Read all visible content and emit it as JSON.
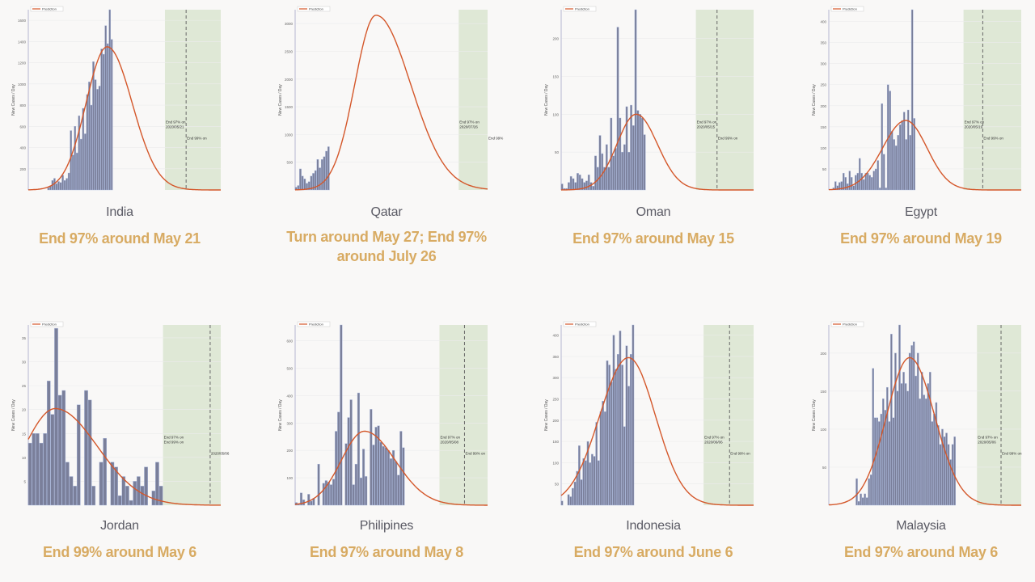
{
  "colors": {
    "bar": "#7a7f9a",
    "bar_edge": "#a9b8e0",
    "curve": "#d4572a",
    "shade": "#dfe8d6",
    "subtitle": "#d8ab63",
    "name": "#5a5a64"
  },
  "legend_label": "Prediction",
  "ylabel": "New Cases / Day",
  "chart_data": [
    {
      "type": "bar+line",
      "country": "India",
      "subtitle": "End 97% around May 21",
      "ylim": [
        0,
        1700
      ],
      "yticks": [
        200,
        400,
        600,
        800,
        1000,
        1200,
        1400,
        1600
      ],
      "xlim": [
        0,
        100
      ],
      "bars_range": [
        10,
        44
      ],
      "bars": [
        20,
        40,
        90,
        110,
        60,
        80,
        70,
        140,
        90,
        110,
        160,
        560,
        330,
        600,
        350,
        700,
        480,
        770,
        530,
        900,
        1020,
        800,
        1210,
        1040,
        950,
        980,
        1330,
        1280,
        1550,
        1380,
        1700,
        1420
      ],
      "prediction": {
        "peak": 1350,
        "peak_x": 41,
        "spread_left": 11,
        "spread_right": 13
      },
      "shade_range": [
        71,
        100
      ],
      "dashed_x": 82,
      "annotations": [
        "End 97% on",
        "2020/05/21",
        "End 99% on"
      ]
    },
    {
      "type": "bar+line",
      "country": "Qatar",
      "subtitle": "Turn around May 27; End 97% around July 26",
      "ylim": [
        0,
        3250
      ],
      "yticks": [
        500,
        1000,
        1500,
        2000,
        2500,
        3000
      ],
      "xlim": [
        0,
        100
      ],
      "bars_range": [
        0,
        18
      ],
      "bars": [
        50,
        80,
        380,
        250,
        200,
        120,
        150,
        250,
        300,
        350,
        550,
        400,
        550,
        600,
        700,
        780
      ],
      "prediction": {
        "peak": 3150,
        "peak_x": 42,
        "spread_left": 11,
        "spread_right": 18
      },
      "shade_range": [
        85,
        100
      ],
      "dashed_x": null,
      "annotations": [
        "End 97% on",
        "2020/07/26",
        "End 99%"
      ]
    },
    {
      "type": "bar+line",
      "country": "Oman",
      "subtitle": "End 97% around May 15",
      "ylim": [
        0,
        238
      ],
      "yticks": [
        50,
        100,
        150,
        200
      ],
      "xlim": [
        0,
        100
      ],
      "bars_range": [
        0,
        44
      ],
      "bars": [
        8,
        2,
        2,
        10,
        18,
        15,
        10,
        22,
        20,
        15,
        10,
        12,
        20,
        10,
        5,
        45,
        30,
        72,
        48,
        30,
        60,
        30,
        95,
        45,
        55,
        215,
        95,
        50,
        60,
        110,
        50,
        112,
        85,
        240,
        105,
        100,
        95,
        73
      ],
      "prediction": {
        "peak": 100,
        "peak_x": 39,
        "spread_left": 10,
        "spread_right": 11
      },
      "shade_range": [
        70,
        100
      ],
      "dashed_x": 81,
      "annotations": [
        "End 97% on",
        "2020/05/15",
        "End 99% on"
      ]
    },
    {
      "type": "bar+line",
      "country": "Egypt",
      "subtitle": "End 97% around May 19",
      "ylim": [
        0,
        428
      ],
      "yticks": [
        50,
        100,
        150,
        200,
        250,
        300,
        350,
        400
      ],
      "xlim": [
        0,
        100
      ],
      "bars_range": [
        2,
        45
      ],
      "bars": [
        5,
        20,
        10,
        18,
        20,
        40,
        30,
        15,
        45,
        30,
        10,
        35,
        40,
        75,
        40,
        25,
        40,
        40,
        35,
        30,
        45,
        50,
        70,
        5,
        205,
        85,
        5,
        250,
        235,
        140,
        120,
        105,
        130,
        155,
        165,
        185,
        120,
        190,
        130,
        450,
        170
      ],
      "prediction": {
        "peak": 165,
        "peak_x": 40,
        "spread_left": 12,
        "spread_right": 11
      },
      "shade_range": [
        70,
        100
      ],
      "dashed_x": 80,
      "annotations": [
        "End 97% on",
        "2020/05/19",
        "End 99% on"
      ]
    },
    {
      "type": "bar+line",
      "country": "Jordan",
      "subtitle": "End 99% around May 6",
      "ylim": [
        0,
        37.7
      ],
      "yticks": [
        5,
        10,
        15,
        20,
        25,
        30,
        35
      ],
      "xlim": [
        0,
        100
      ],
      "bars_range": [
        0,
        70
      ],
      "bars": [
        13,
        15,
        15,
        13,
        15,
        26,
        19,
        37,
        23,
        24,
        9,
        6,
        4,
        21,
        0,
        24,
        22,
        4,
        0,
        9,
        14,
        0,
        9,
        8,
        2,
        6,
        4,
        1,
        5,
        6,
        4,
        8,
        0,
        3,
        9,
        4
      ],
      "prediction": {
        "peak": 20.2,
        "peak_x": 14,
        "spread_left": 16,
        "spread_right": 22
      },
      "shade_range": [
        70,
        100
      ],
      "dashed_x": 94.5,
      "annotations": [
        "End 97% on",
        "End 99% on",
        "2020/05/06"
      ]
    },
    {
      "type": "bar+line",
      "country": "Philipines",
      "subtitle": "End 97% around May 8",
      "ylim": [
        0,
        658
      ],
      "yticks": [
        100,
        200,
        300,
        400,
        500,
        600
      ],
      "xlim": [
        0,
        100
      ],
      "bars_range": [
        0,
        57
      ],
      "bars": [
        10,
        5,
        45,
        20,
        0,
        40,
        15,
        25,
        0,
        150,
        0,
        80,
        90,
        85,
        75,
        95,
        270,
        340,
        660,
        0,
        225,
        320,
        385,
        75,
        150,
        410,
        100,
        205,
        105,
        0,
        350,
        220,
        285,
        290,
        230,
        215,
        210,
        200,
        170,
        200,
        160,
        110,
        270,
        210
      ],
      "prediction": {
        "peak": 270,
        "peak_x": 36,
        "spread_left": 12,
        "spread_right": 16
      },
      "shade_range": [
        75,
        100
      ],
      "dashed_x": 88,
      "annotations": [
        "End 97% on",
        "2020/05/08",
        "End 99% on"
      ]
    },
    {
      "type": "bar+line",
      "country": "Indonesia",
      "subtitle": "End 97% around June 6",
      "ylim": [
        0,
        424
      ],
      "yticks": [
        50,
        100,
        150,
        200,
        250,
        300,
        350,
        400
      ],
      "xlim": [
        0,
        100
      ],
      "bars_range": [
        0,
        38
      ],
      "bars": [
        10,
        0,
        0,
        25,
        20,
        40,
        55,
        80,
        140,
        60,
        110,
        105,
        150,
        100,
        120,
        115,
        195,
        105,
        220,
        245,
        220,
        340,
        330,
        290,
        400,
        320,
        355,
        410,
        330,
        185,
        375,
        280,
        355,
        425
      ],
      "prediction": {
        "peak": 347,
        "peak_x": 35,
        "spread_left": 15,
        "spread_right": 14
      },
      "shade_range": [
        74,
        100
      ],
      "dashed_x": 87.5,
      "annotations": [
        "End 97% on",
        "2020/06/06",
        "End 99% on"
      ]
    },
    {
      "type": "bar+line",
      "country": "Malaysia",
      "subtitle": "End 97% around May 6",
      "ylim": [
        0,
        237
      ],
      "yticks": [
        50,
        100,
        150,
        200
      ],
      "xlim": [
        0,
        100
      ],
      "bars_range": [
        13,
        66
      ],
      "bars": [
        0,
        35,
        5,
        15,
        10,
        15,
        10,
        35,
        40,
        180,
        115,
        115,
        110,
        120,
        140,
        125,
        155,
        110,
        225,
        115,
        200,
        150,
        240,
        160,
        175,
        160,
        150,
        200,
        210,
        215,
        170,
        200,
        140,
        175,
        145,
        140,
        160,
        175,
        110,
        120,
        135,
        105,
        80,
        100,
        90,
        95,
        80,
        60,
        80,
        90
      ],
      "prediction": {
        "peak": 194,
        "peak_x": 42,
        "spread_left": 12,
        "spread_right": 13
      },
      "shade_range": [
        77,
        100
      ],
      "dashed_x": 89.5,
      "annotations": [
        "End 97% on",
        "2020/05/06",
        "End 99% on"
      ]
    }
  ]
}
